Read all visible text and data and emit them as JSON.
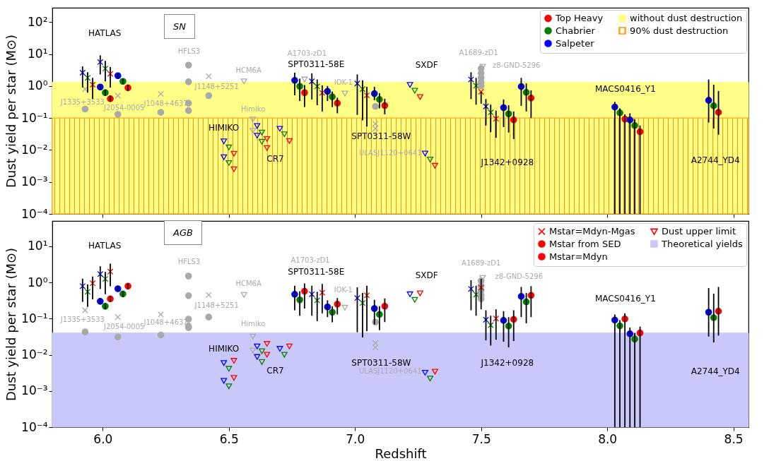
{
  "chart_data": [
    {
      "type": "scatter",
      "title": "SN",
      "ylabel": "Dust yield per star (M⊙)",
      "xlim": [
        5.8,
        8.56
      ],
      "ylim": [
        0.0001,
        280
      ],
      "log": "y",
      "legend": "top right",
      "tick_labels": "y",
      "xticks": [
        6,
        6.5,
        7,
        7.5,
        8,
        8.5
      ],
      "yticks": [
        {
          "value": 0.0001,
          "label": "10⁻⁴"
        },
        {
          "value": 0.001,
          "label": "10⁻³"
        },
        {
          "value": 0.01,
          "label": "10⁻²"
        },
        {
          "value": 0.1,
          "label": "10⁻¹"
        },
        {
          "value": 1,
          "label": "10⁰"
        },
        {
          "value": 10,
          "label": "10¹"
        },
        {
          "value": 100,
          "label": "10²"
        }
      ],
      "bands": [
        {
          "axis": "y",
          "from": 0.0001,
          "to": 1.3,
          "label": "without dust destruction",
          "color": "#ffff88"
        },
        {
          "axis": "y",
          "from": 0.0001,
          "to": 0.1,
          "label": "90% dust destruction",
          "color": "#ff9900"
        }
      ],
      "series": [
        {
          "name": "Top Heavy",
          "marker": "circle",
          "color": "#ff0000",
          "x": [
            6.8,
            8.07,
            8.13,
            8.441
          ],
          "values": [
            0.62,
            0.092,
            0.037,
            0.15
          ],
          "errors": [
            [
              0.22,
              1.07
            ],
            [
              0.0001,
              0.13
            ],
            [
              0.0001,
              0.058
            ],
            [
              0.03,
              0.7
            ]
          ]
        },
        {
          "name": "Chabrier",
          "marker": "circle",
          "color": "#008000",
          "x": [
            6.781,
            8.05,
            8.109,
            8.422
          ],
          "values": [
            0.98,
            0.145,
            0.058,
            0.24
          ],
          "errors": [
            [
              0.34,
              1.7
            ],
            [
              0.0001,
              0.2
            ],
            [
              0.0001,
              0.092
            ],
            [
              0.047,
              1.1
            ]
          ]
        },
        {
          "name": "Salpeter",
          "marker": "circle",
          "color": "#0000ff",
          "x": [
            6.761,
            8.03,
            8.09,
            8.402
          ],
          "values": [
            1.5,
            0.22,
            0.087,
            0.355
          ],
          "errors": [
            [
              0.51,
              2.6
            ],
            [
              0.0001,
              0.32
            ],
            [
              0.0001,
              0.14
            ],
            [
              0.072,
              1.6
            ]
          ]
        },
        {
          "marker": "cross",
          "color": "#ff0000",
          "x": [
            5.96,
            6.03,
            6.87,
            7.047,
            7.5,
            7.559
          ],
          "values": [
            1.1,
            2.4,
            0.61,
            0.51,
            0.66,
            0.095
          ],
          "errors": [
            [
              0.39,
              1.8
            ],
            [
              0.9,
              3.9
            ],
            [
              0.16,
              1.05
            ],
            [
              0.054,
              0.94
            ],
            [
              0.28,
              0.66
            ],
            [
              0.024,
              0.17
            ]
          ]
        },
        {
          "marker": "cross",
          "color": "#008000",
          "x": [
            5.94,
            6.01,
            6.85,
            7.03,
            7.48,
            7.538
          ],
          "values": [
            1.8,
            3.5,
            0.97,
            0.8,
            1.02,
            0.15
          ],
          "errors": [
            [
              0.62,
              2.7
            ],
            [
              1.4,
              6.1
            ],
            [
              0.25,
              1.6
            ],
            [
              0.084,
              1.5
            ],
            [
              0.26,
              1.8
            ],
            [
              0.036,
              0.26
            ]
          ]
        },
        {
          "marker": "cross",
          "color": "#0000ff",
          "x": [
            5.92,
            5.99,
            6.829,
            7.009,
            7.46,
            7.519
          ],
          "values": [
            2.6,
            5.6,
            1.4,
            1.2,
            1.6,
            0.23
          ],
          "errors": [
            [
              0.9,
              4.1
            ],
            [
              2.3,
              9.1
            ],
            [
              0.38,
              2.5
            ],
            [
              0.125,
              2.3
            ],
            [
              0.39,
              2.7
            ],
            [
              0.058,
              0.39
            ]
          ]
        },
        {
          "marker": "circle",
          "color": "#ff0000",
          "x": [
            6.03,
            6.1,
            6.93,
            7.118,
            7.629,
            7.698
          ],
          "values": [
            0.4,
            0.88,
            0.29,
            0.245,
            0.087,
            0.42
          ],
          "errors": [
            [
              0.33,
              0.49
            ],
            [
              0.7,
              1.1
            ],
            [
              0.14,
              0.43
            ],
            [
              0.13,
              0.4
            ],
            [
              0.022,
              0.16
            ],
            [
              0.1,
              0.73
            ]
          ]
        },
        {
          "marker": "circle",
          "color": "#008000",
          "x": [
            6.01,
            6.08,
            6.91,
            7.097,
            7.609,
            7.679
          ],
          "values": [
            0.62,
            1.4,
            0.46,
            0.38,
            0.135,
            0.63
          ],
          "errors": [
            [
              0.5,
              0.78
            ],
            [
              1.15,
              1.7
            ],
            [
              0.22,
              0.67
            ],
            [
              0.2,
              0.6
            ],
            [
              0.035,
              0.25
            ],
            [
              0.16,
              1.2
            ]
          ]
        },
        {
          "marker": "circle",
          "color": "#0000ff",
          "x": [
            5.99,
            6.06,
            6.891,
            7.077,
            7.589,
            7.659
          ],
          "values": [
            0.93,
            2.1,
            0.68,
            0.58,
            0.21,
            0.96
          ],
          "errors": [
            [
              0.76,
              1.1
            ],
            [
              1.7,
              2.5
            ],
            [
              0.34,
              1.0
            ],
            [
              0.36,
              0.94
            ],
            [
              0.052,
              0.38
            ],
            [
              0.24,
              1.8
            ]
          ]
        },
        {
          "marker": "triangle",
          "color": "#ff0000",
          "x": [
            6.52,
            6.52,
            6.651,
            6.651,
            6.74,
            7.258,
            7.317
          ],
          "values": [
            0.0076,
            0.0025,
            0.022,
            0.0115,
            0.019,
            0.45,
            0.0032
          ]
        },
        {
          "marker": "triangle",
          "color": "#008000",
          "x": [
            6.5,
            6.5,
            6.631,
            6.631,
            6.72,
            7.237,
            7.298
          ],
          "values": [
            0.012,
            0.0039,
            0.035,
            0.018,
            0.031,
            0.71,
            0.005
          ]
        },
        {
          "marker": "triangle",
          "color": "#0000ff",
          "x": [
            6.48,
            6.48,
            6.612,
            6.612,
            6.702,
            7.218,
            7.278
          ],
          "values": [
            0.0185,
            0.0059,
            0.056,
            0.028,
            0.046,
            1.08,
            0.0077
          ]
        },
        {
          "marker": "circle",
          "color": "#a9a9a9",
          "x": [
            6.34,
            6.34,
            6.34,
            6.34,
            7.5,
            7.5,
            7.5,
            7.5,
            7.5
          ],
          "values": [
            4.5,
            1.35,
            0.29,
            0.17,
            3.5,
            2.5,
            1.8,
            1.3,
            1.0
          ]
        },
        {
          "marker": "cross",
          "color": "#a9a9a9",
          "x": [
            5.93,
            6.06,
            6.23,
            6.42,
            7.081,
            7.081
          ],
          "values": [
            0.8,
            0.5,
            0.57,
            2.0,
            0.066,
            0.047
          ]
        },
        {
          "marker": "circle",
          "color": "#a9a9a9",
          "x": [
            5.93,
            6.06,
            6.23,
            6.42,
            7.081
          ],
          "values": [
            0.19,
            0.13,
            0.15,
            0.5,
            0.23
          ]
        },
        {
          "marker": "triangle",
          "color": "#a9a9a9",
          "x": [
            6.56,
            6.595,
            6.595,
            6.8,
            6.96,
            7.506
          ],
          "values": [
            1.4,
            0.09,
            0.04,
            1.6,
            0.58,
            4.0
          ]
        }
      ],
      "annotations": [
        "HATLAS",
        "HFLS3",
        "A1703-zD1",
        "SPT0311-58E",
        "HCM6A",
        "J1148+5251",
        "IOK-1",
        "J1335+3533",
        "J2054-0005",
        "J1048+4637",
        "Himiko",
        "HIMIKO",
        "CR7",
        "SXDF",
        "SPT0311-58W",
        "ULASJ1120+0641",
        "A1689-zD1",
        "z8-GND-5296",
        "MACS0416_Y1",
        "J1342+0928",
        "A2744_YD4"
      ]
    },
    {
      "type": "scatter",
      "title": "AGB",
      "xlabel": "Redshift",
      "ylabel": "Dust yield per star (M⊙)",
      "xlim": [
        5.8,
        8.56
      ],
      "ylim": [
        0.0001,
        50
      ],
      "log": "y",
      "legend": "top right",
      "xticks": [
        {
          "value": 6,
          "label": "6.0"
        },
        {
          "value": 6.5,
          "label": "6.5"
        },
        {
          "value": 7,
          "label": "7.0"
        },
        {
          "value": 7.5,
          "label": "7.5"
        },
        {
          "value": 8,
          "label": "8.0"
        },
        {
          "value": 8.5,
          "label": "8.5"
        }
      ],
      "yticks": [
        {
          "value": 0.0001,
          "label": "10⁻⁴"
        },
        {
          "value": 0.001,
          "label": "10⁻³"
        },
        {
          "value": 0.01,
          "label": "10⁻²"
        },
        {
          "value": 0.1,
          "label": "10⁻¹"
        },
        {
          "value": 1,
          "label": "10⁰"
        },
        {
          "value": 10,
          "label": "10¹"
        }
      ],
      "bands": [
        {
          "axis": "y",
          "from": 0.0001,
          "to": 0.04,
          "label": "Theoretical yields",
          "color": "#c8c8fa"
        }
      ],
      "series": [
        {
          "name": "Mstar=Mdyn-Mgas",
          "marker": "cross",
          "color": "#ff0000",
          "x": [
            5.96,
            6.03,
            6.87,
            7.047,
            7.5,
            7.559
          ],
          "values": [
            0.95,
            2.0,
            0.52,
            0.44,
            0.72,
            0.1
          ],
          "errors": [
            [
              0.34,
              1.46
            ],
            [
              0.78,
              3.3
            ],
            [
              0.14,
              0.91
            ],
            [
              0.045,
              0.81
            ],
            [
              0.18,
              1.25
            ],
            [
              0.026,
              0.18
            ]
          ]
        },
        {
          "name": "Mstar from SED",
          "marker": "circle",
          "color": "#ff0000",
          "x": [
            6.8,
            8.07,
            8.13,
            8.441
          ],
          "values": [
            0.57,
            0.098,
            0.04,
            0.16
          ],
          "errors": [
            [
              0.19,
              0.94
            ],
            [
              0.0001,
              0.14
            ],
            [
              0.0001,
              0.06
            ],
            [
              0.034,
              0.75
            ]
          ]
        },
        {
          "name": "Mstar=Mdyn",
          "marker": "circle",
          "color": "#ff0000",
          "x": [
            6.03,
            6.1,
            6.93,
            7.118,
            7.629,
            7.698
          ],
          "values": [
            0.35,
            0.79,
            0.25,
            0.22,
            0.095,
            0.44
          ],
          "errors": [
            [
              0.29,
              0.42
            ],
            [
              0.66,
              0.95
            ],
            [
              0.13,
              0.37
            ],
            [
              0.08,
              0.36
            ],
            [
              0.024,
              0.17
            ],
            [
              0.11,
              0.79
            ]
          ]
        },
        {
          "name": "Dust upper limit",
          "marker": "triangle",
          "color": "#ff0000",
          "x": [
            6.52,
            6.52,
            6.651,
            6.651,
            6.74,
            7.258,
            7.317
          ],
          "values": [
            0.0068,
            0.0023,
            0.02,
            0.01,
            0.017,
            0.5,
            0.0034
          ]
        },
        {
          "marker": "cross",
          "color": "#008000",
          "x": [
            5.94,
            6.01,
            6.85,
            7.03,
            7.48,
            7.538
          ],
          "values": [
            0.55,
            1.25,
            0.32,
            0.27,
            0.46,
            0.066
          ],
          "errors": [
            [
              0.21,
              0.88
            ],
            [
              0.47,
              1.94
            ],
            [
              0.085,
              0.55
            ],
            [
              0.03,
              0.51
            ],
            [
              0.12,
              0.81
            ],
            [
              0.018,
              0.12
            ]
          ]
        },
        {
          "marker": "cross",
          "color": "#0000ff",
          "x": [
            5.92,
            5.99,
            6.829,
            7.009,
            7.46,
            7.519
          ],
          "values": [
            0.79,
            1.7,
            0.47,
            0.37,
            0.66,
            0.093
          ],
          "errors": [
            [
              0.29,
              1.27
            ],
            [
              0.66,
              2.8
            ],
            [
              0.12,
              0.81
            ],
            [
              0.042,
              0.73
            ],
            [
              0.17,
              1.15
            ],
            [
              0.025,
              0.17
            ]
          ]
        },
        {
          "marker": "circle",
          "color": "#008000",
          "x": [
            6.781,
            8.05,
            8.109,
            8.422
          ],
          "values": [
            0.33,
            0.063,
            0.027,
            0.106
          ],
          "errors": [
            [
              0.12,
              0.57
            ],
            [
              0.0001,
              0.091
            ],
            [
              0.0001,
              0.04
            ],
            [
              0.022,
              0.49
            ]
          ]
        },
        {
          "marker": "circle",
          "color": "#0000ff",
          "x": [
            6.761,
            8.03,
            8.09,
            8.402
          ],
          "values": [
            0.47,
            0.091,
            0.038,
            0.15
          ],
          "errors": [
            [
              0.17,
              0.81
            ],
            [
              0.0001,
              0.13
            ],
            [
              0.0001,
              0.057
            ],
            [
              0.032,
              0.7
            ]
          ]
        },
        {
          "marker": "circle",
          "color": "#008000",
          "x": [
            6.01,
            6.08,
            6.91,
            7.097,
            7.609,
            7.679
          ],
          "values": [
            0.22,
            0.48,
            0.15,
            0.13,
            0.062,
            0.29
          ],
          "errors": [
            [
              0.18,
              0.27
            ],
            [
              0.4,
              0.57
            ],
            [
              0.079,
              0.22
            ],
            [
              0.048,
              0.22
            ],
            [
              0.016,
              0.11
            ],
            [
              0.074,
              0.51
            ]
          ]
        },
        {
          "marker": "circle",
          "color": "#0000ff",
          "x": [
            5.99,
            6.06,
            6.891,
            7.077,
            7.589,
            7.659
          ],
          "values": [
            0.3,
            0.67,
            0.21,
            0.19,
            0.089,
            0.41
          ],
          "errors": [
            [
              0.25,
              0.37
            ],
            [
              0.56,
              0.8
            ],
            [
              0.11,
              0.32
            ],
            [
              0.069,
              0.33
            ],
            [
              0.023,
              0.16
            ],
            [
              0.11,
              0.75
            ]
          ]
        },
        {
          "marker": "triangle",
          "color": "#008000",
          "x": [
            6.5,
            6.5,
            6.631,
            6.631,
            6.72,
            7.237,
            7.298
          ],
          "values": [
            0.0041,
            0.00134,
            0.0125,
            0.0063,
            0.01,
            0.33,
            0.0022
          ]
        },
        {
          "marker": "triangle",
          "color": "#0000ff",
          "x": [
            6.48,
            6.48,
            6.612,
            6.612,
            6.702,
            7.218,
            7.278
          ],
          "values": [
            0.0059,
            0.0019,
            0.017,
            0.0087,
            0.0146,
            0.47,
            0.0032
          ]
        },
        {
          "marker": "circle",
          "color": "#a9a9a9",
          "x": [
            6.34,
            6.34,
            6.34,
            6.34,
            6.34,
            7.5,
            7.5,
            7.5,
            7.5,
            7.5
          ],
          "values": [
            1.5,
            0.43,
            0.097,
            0.062,
            0.056,
            1.1,
            0.8,
            0.6,
            0.45,
            0.35
          ]
        },
        {
          "marker": "cross",
          "color": "#a9a9a9",
          "x": [
            5.93,
            6.06,
            6.23,
            6.42,
            7.081,
            7.081
          ],
          "values": [
            0.17,
            0.11,
            0.13,
            0.45,
            0.021,
            0.016
          ]
        },
        {
          "marker": "circle",
          "color": "#a9a9a9",
          "x": [
            5.93,
            6.06,
            6.23,
            6.42,
            7.081
          ],
          "values": [
            0.043,
            0.031,
            0.035,
            0.11,
            0.08
          ]
        },
        {
          "marker": "triangle",
          "color": "#a9a9a9",
          "x": [
            6.56,
            6.595,
            6.595,
            6.96,
            7.506
          ],
          "values": [
            0.45,
            0.032,
            0.013,
            0.2,
            1.33
          ]
        }
      ],
      "annotations": [
        "HATLAS",
        "HFLS3",
        "A1703-zD1",
        "SPT0311-58E",
        "HCM6A",
        "J1148+5251",
        "IOK-1",
        "J1335+3533",
        "J2054-0005",
        "J1048+4637",
        "Himiko",
        "HIMIKO",
        "CR7",
        "SXDF",
        "SPT0311-58W",
        "ULASJ1120+0641",
        "A1689-zD1",
        "z8-GND-5296",
        "MACS0416_Y1",
        "J1342+0928",
        "A2744_YD4"
      ]
    }
  ]
}
